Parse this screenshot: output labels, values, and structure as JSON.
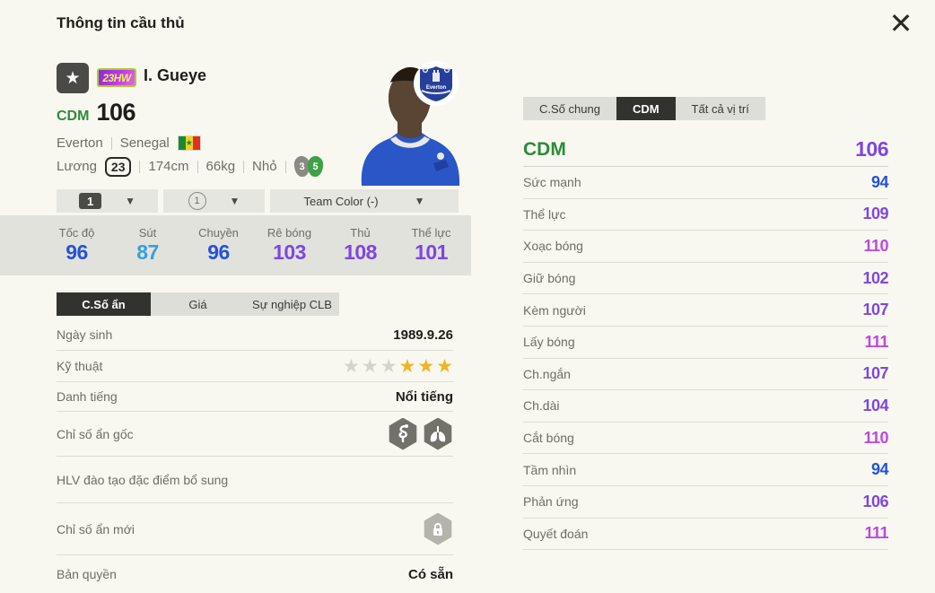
{
  "modal": {
    "title": "Thông tin cầu thủ"
  },
  "icons": {
    "close": "✕",
    "favorite_star": "★",
    "dropdown_arrow": "▼",
    "rating_star": "★",
    "flag_star": "★"
  },
  "player": {
    "name": "I. Gueye",
    "season_badge": "23HW",
    "position": "CDM",
    "ovr": "106",
    "club": "Everton",
    "nation": "Senegal",
    "crest_text": "Everton",
    "salary_label": "Lương",
    "salary": "23",
    "height": "174cm",
    "weight": "66kg",
    "body_type": "Nhỏ",
    "left_foot": "3",
    "right_foot": "5"
  },
  "dropdowns": [
    {
      "style": "badge",
      "label": "1"
    },
    {
      "style": "circle",
      "label": "1"
    },
    {
      "style": "text",
      "label": "Team Color (-)"
    }
  ],
  "summary": {
    "stats": [
      {
        "label": "Tốc độ",
        "value": "96",
        "color": "#2353d8"
      },
      {
        "label": "Sút",
        "value": "87",
        "color": "#36a0dc"
      },
      {
        "label": "Chuyền",
        "value": "96",
        "color": "#2353d8"
      },
      {
        "label": "Rê bóng",
        "value": "103",
        "color": "#7e46e0"
      },
      {
        "label": "Thủ",
        "value": "108",
        "color": "#7e46e0"
      },
      {
        "label": "Thể lực",
        "value": "101",
        "color": "#7e46e0"
      }
    ]
  },
  "left_tabs": [
    {
      "label": "C.Số ẩn",
      "active": true
    },
    {
      "label": "Giá",
      "active": false
    },
    {
      "label": "Sự nghiệp CLB",
      "active": false
    }
  ],
  "hidden_panel": {
    "birth_label": "Ngày sinh",
    "birth_value": "1989.9.26",
    "technique_label": "Kỹ thuật",
    "technique_stars": [
      "gray",
      "gray",
      "gray",
      "gold",
      "gold",
      "gold"
    ],
    "fame_label": "Danh tiếng",
    "fame_value": "Nổi tiếng",
    "hidden_orig_label": "Chỉ số ẩn gốc",
    "hidden_orig_icons": [
      "snake-trait-icon",
      "lungs-trait-icon"
    ],
    "coach_label": "HLV đào tạo đặc điểm bổ sung",
    "hidden_new_label": "Chỉ số ẩn mới",
    "hidden_new_icon": "lock-icon",
    "copyright_label": "Bản quyền",
    "copyright_value": "Có sẵn"
  },
  "right_tabs": [
    {
      "label": "C.Số chung",
      "active": false
    },
    {
      "label": "CDM",
      "active": true
    },
    {
      "label": "Tất cả vị trí",
      "active": false
    }
  ],
  "position_stats": {
    "header_label": "CDM",
    "header_value": "106",
    "header_color": "#7e46e0",
    "rows": [
      {
        "label": "Sức mạnh",
        "value": "94",
        "color": "#2353d8"
      },
      {
        "label": "Thể lực",
        "value": "109",
        "color": "#7e46e0"
      },
      {
        "label": "Xoạc bóng",
        "value": "110",
        "color": "#bc49e0"
      },
      {
        "label": "Giữ bóng",
        "value": "102",
        "color": "#7e46e0"
      },
      {
        "label": "Kèm người",
        "value": "107",
        "color": "#7e46e0"
      },
      {
        "label": "Lấy bóng",
        "value": "111",
        "color": "#bc49e0"
      },
      {
        "label": "Ch.ngắn",
        "value": "107",
        "color": "#7e46e0"
      },
      {
        "label": "Ch.dài",
        "value": "104",
        "color": "#7e46e0"
      },
      {
        "label": "Cắt bóng",
        "value": "110",
        "color": "#bc49e0"
      },
      {
        "label": "Tầm nhìn",
        "value": "94",
        "color": "#2353d8"
      },
      {
        "label": "Phản ứng",
        "value": "106",
        "color": "#7e46e0"
      },
      {
        "label": "Quyết đoán",
        "value": "111",
        "color": "#bc49e0"
      }
    ]
  },
  "colors": {
    "rating_80s": "#36a0dc",
    "rating_90s": "#2353d8",
    "rating_100s": "#7e46e0",
    "rating_110s": "#bc49e0",
    "position_green": "#2e8b3a",
    "nation_flag": [
      "#1a8a32",
      "#f5d018",
      "#e03020"
    ]
  }
}
